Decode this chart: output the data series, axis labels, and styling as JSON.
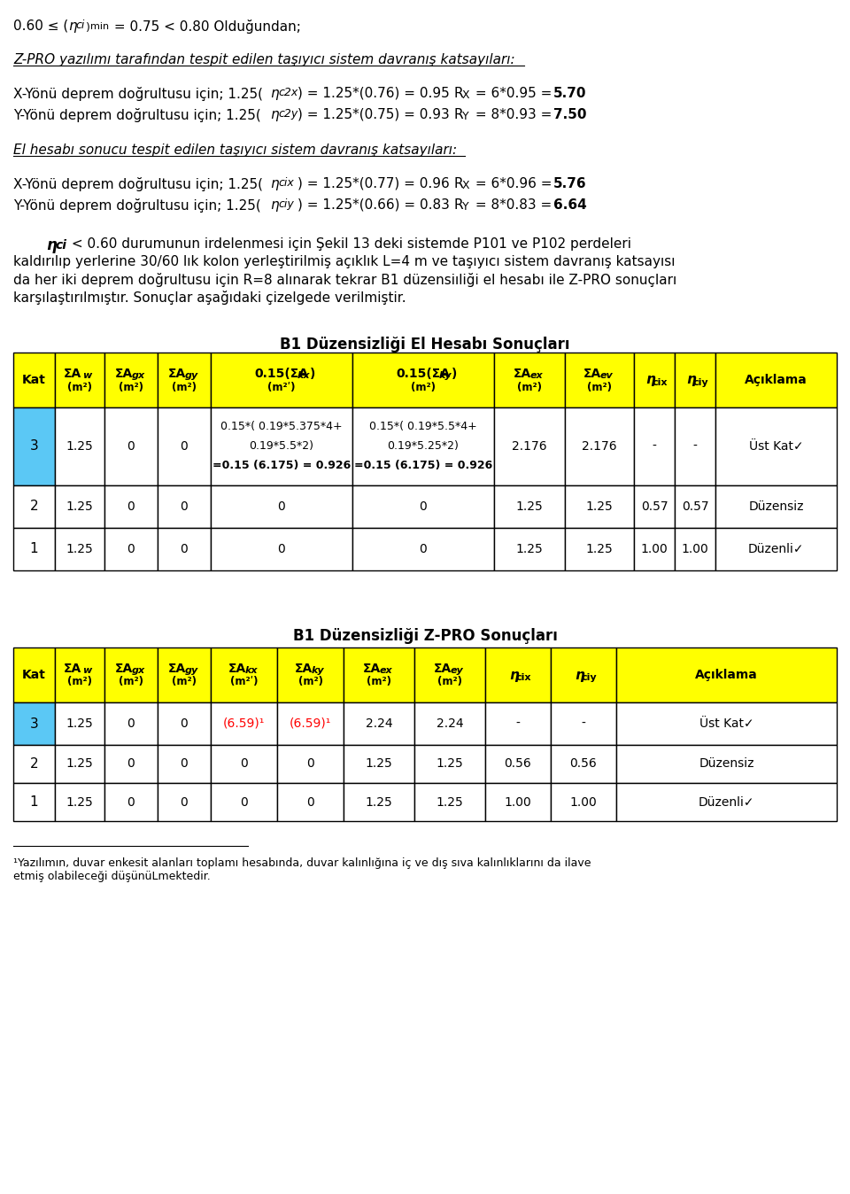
{
  "bg_color": "#ffffff",
  "yellow": "#FFFF00",
  "cyan": "#5BC8F5",
  "red": "#FF0000",
  "white": "#ffffff",
  "table1_title": "B1 Düzensizliği El Hesabı Sonuçları",
  "table2_title": "B1 Düzensizliği Z-PRO Sonuçları",
  "t1_akx_row3_lines": [
    "0.15*( 0.19*5.375*4+",
    "0.19*5.5*2)",
    "=0.15 (6.175) = 0.926"
  ],
  "t1_aky_row3_lines": [
    "0.15*( 0.19*5.5*4+",
    "0.19*5.25*2)",
    "=0.15 (6.175) = 0.926"
  ],
  "footnote_line1": "¹Yazılımın, duvar enkesit alanları toplamı hesabında, duvar kalınlığına iç ve dış sıva kalınlıklarını da ilave",
  "footnote_line2": "etmiş olabileceği düşünüLmektedir."
}
